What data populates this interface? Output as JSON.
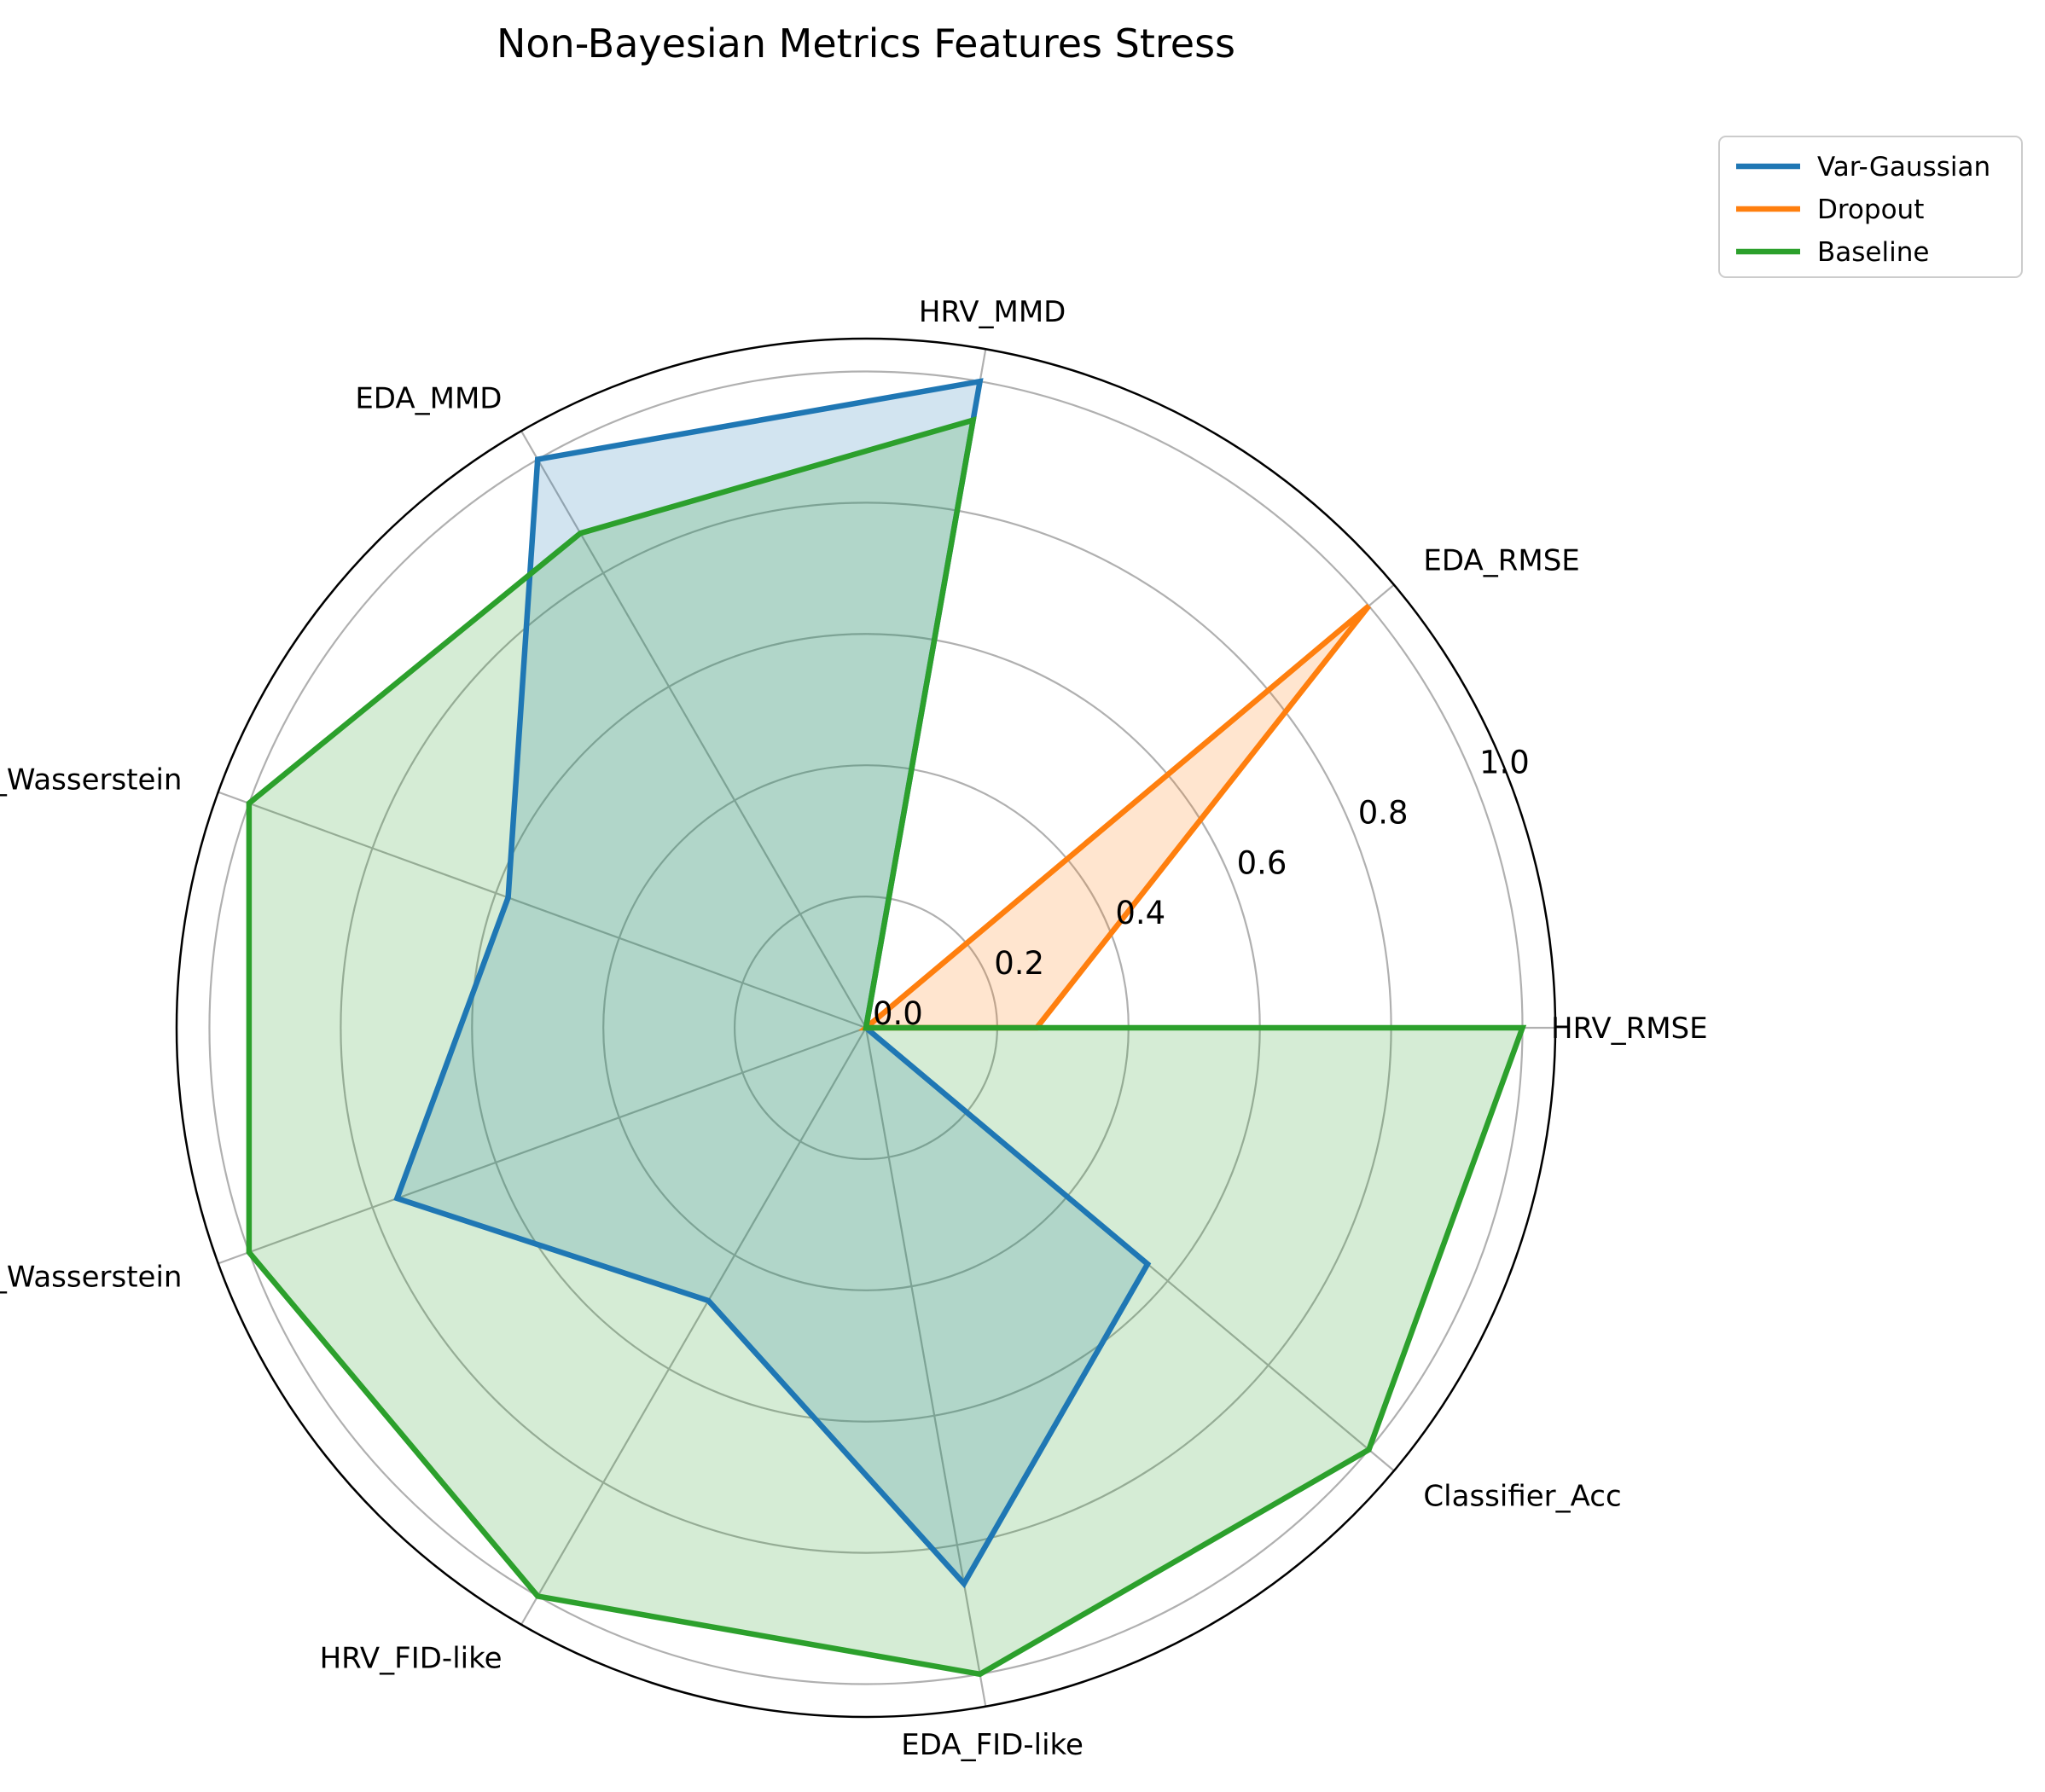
{
  "chart_data": {
    "type": "radar",
    "title": "Non-Bayesian Metrics Features Stress",
    "categories": [
      "HRV_RMSE",
      "EDA_RMSE",
      "HRV_MMD",
      "EDA_MMD",
      "HRV_Wasserstein",
      "EDA_Wasserstein",
      "HRV_FID-like",
      "EDA_FID-like",
      "Classifier_Acc"
    ],
    "rlim": [
      0,
      1.05
    ],
    "rticks": [
      0.0,
      0.2,
      0.4,
      0.6,
      0.8,
      1.0
    ],
    "rtick_labels": [
      "0.0",
      "0.2",
      "0.4",
      "0.6",
      "0.8",
      "1.0"
    ],
    "grid": true,
    "legend_position": "upper right, outside plot",
    "series": [
      {
        "name": "Var-Gaussian",
        "color": "#1f77b4",
        "values": [
          0.0,
          0.0,
          1.0,
          1.0,
          0.58,
          0.76,
          0.48,
          0.86,
          0.56
        ]
      },
      {
        "name": "Dropout",
        "color": "#ff7f0e",
        "values": [
          0.26,
          1.0,
          0.0,
          0.0,
          0.0,
          0.0,
          0.0,
          0.0,
          0.0
        ]
      },
      {
        "name": "Baseline",
        "color": "#2ca02c",
        "values": [
          1.0,
          0.0,
          0.94,
          0.87,
          1.0,
          1.0,
          1.0,
          1.0,
          1.0
        ]
      }
    ]
  }
}
